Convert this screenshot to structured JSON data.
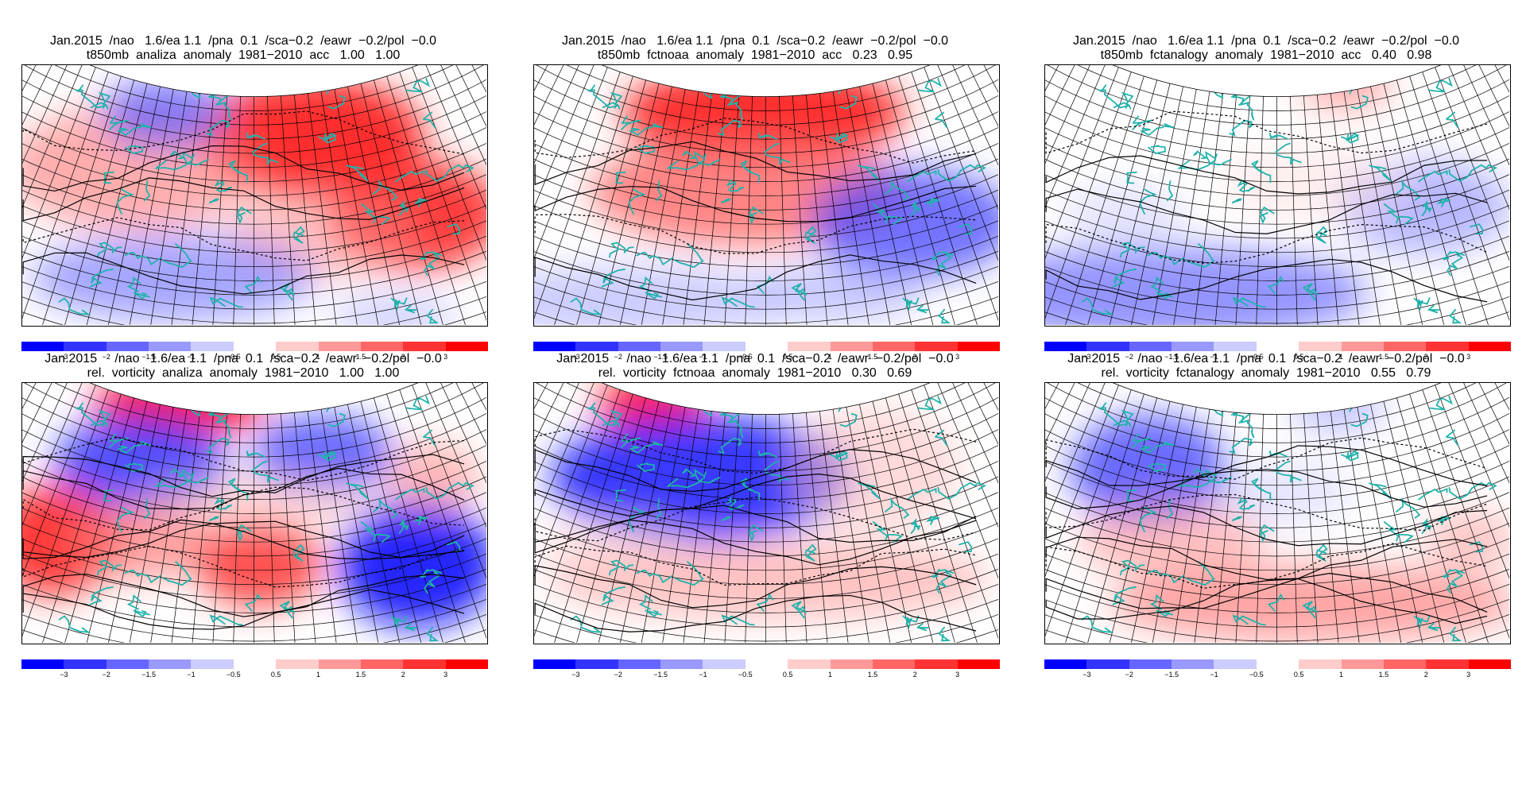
{
  "panels": [
    {
      "id": "t850-analiza",
      "title_line1": "Jan.2015  /nao   1.6/ea 1.1  /pna  0.1  /sca−0.2  /eawr  −0.2/pol  −0.0",
      "title_line2": "t850mb  analiza  anomaly  1981−2010  acc   1.00   1.00",
      "variant": "t-ana"
    },
    {
      "id": "t850-fctnoaa",
      "title_line1": "Jan.2015  /nao   1.6/ea 1.1  /pna  0.1  /sca−0.2  /eawr  −0.2/pol  −0.0",
      "title_line2": "t850mb  fctnoaa  anomaly  1981−2010  acc   0.23   0.95",
      "variant": "t-noaa"
    },
    {
      "id": "t850-fctanalogy",
      "title_line1": "Jan.2015  /nao   1.6/ea 1.1  /pna  0.1  /sca−0.2  /eawr  −0.2/pol  −0.0",
      "title_line2": "t850mb  fctanalogy  anomaly  1981−2010  acc   0.40   0.98",
      "variant": "t-analog"
    },
    {
      "id": "vort-analiza",
      "title_line1": "Jan.2015     /nao   1.6/ea 1.1  /pna  0.1  /sca−0.2  /eawr  −0.2/pol  −0.0",
      "title_line2": "rel.  vorticity  analiza  anomaly  1981−2010   1.00   1.00",
      "variant": "v-ana"
    },
    {
      "id": "vort-fctnoaa",
      "title_line1": "Jan.2015     /nao   1.6/ea 1.1  /pna  0.1  /sca−0.2  /eawr  −0.2/pol  −0.0",
      "title_line2": "rel.  vorticity  fctnoaa  anomaly  1981−2010   0.30   0.69",
      "variant": "v-noaa"
    },
    {
      "id": "vort-fctanalogy",
      "title_line1": "Jan.2015     /nao   1.6/ea 1.1  /pna  0.1  /sca−0.2  /eawr  −0.2/pol  −0.0",
      "title_line2": "rel.  vorticity  fctanalogy  anomaly  1981−2010   0.55   0.79",
      "variant": "v-analog"
    }
  ],
  "colorbar": {
    "colors": [
      "#0000ff",
      "#3333ff",
      "#6666ff",
      "#9999ff",
      "#ccccff",
      "#ffffff",
      "#ffcccc",
      "#ff9999",
      "#ff6666",
      "#ff3333",
      "#ff0000"
    ],
    "labels": [
      "−3",
      "−2",
      "−1.5",
      "−1",
      "−0.5",
      "0.5",
      "1",
      "1.5",
      "2",
      "3"
    ]
  },
  "styles": {
    "coast_color": "#20b2aa",
    "grid_color": "#000000"
  }
}
